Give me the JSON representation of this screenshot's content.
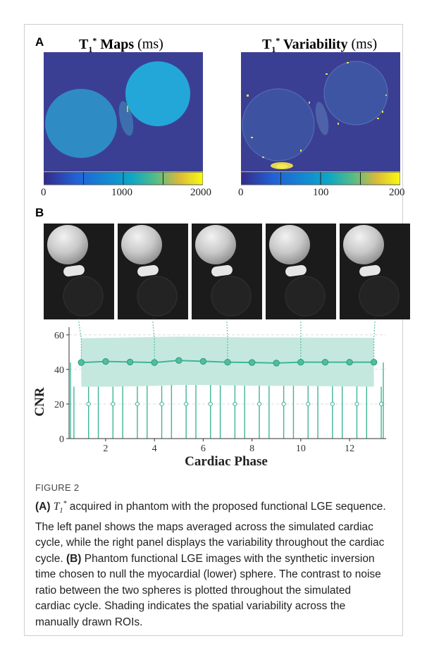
{
  "panel_a": {
    "label": "A",
    "left_map": {
      "title_prefix": "T",
      "subscript": "1",
      "superscript": "*",
      "title_bold": " Maps",
      "title_unit": " (ms)",
      "colorbar_ticks": [
        "0",
        "1000",
        "2000"
      ]
    },
    "right_map": {
      "title_prefix": "T",
      "subscript": "1",
      "superscript": "*",
      "title_bold": " Variability",
      "title_unit": " (ms)",
      "colorbar_ticks": [
        "0",
        "100",
        "200"
      ]
    }
  },
  "panel_b": {
    "label": "B",
    "image_count": 5
  },
  "colors": {
    "teal": "#3fb597",
    "teal_band": "#bfe5da",
    "teal_dark": "#2e9a7d",
    "map_bg": "#3b3f94",
    "grey_grid": "#dddddd"
  },
  "chart_data": {
    "type": "line",
    "xlabel": "Cardiac Phase",
    "ylabel": "CNR",
    "xlim": [
      0.5,
      13.5
    ],
    "ylim": [
      0,
      62
    ],
    "xticks": [
      2,
      4,
      6,
      8,
      10,
      12
    ],
    "yticks": [
      0,
      20,
      40,
      60
    ],
    "grid": "horizontal dashed",
    "series": [
      {
        "x": [
          1,
          2,
          3,
          4,
          5,
          6,
          7,
          8,
          9,
          10,
          11,
          12,
          13
        ],
        "values": [
          44.0,
          44.6,
          44.3,
          44.0,
          45.2,
          44.7,
          44.2,
          44.0,
          43.7,
          44.2,
          44.2,
          44.2,
          44.2
        ],
        "band_upper": [
          58,
          58.3,
          58.5,
          58.8,
          59,
          58.9,
          58.7,
          58.5,
          58.5,
          58.5,
          58.4,
          58.4,
          58.3
        ],
        "band_lower": [
          30,
          30,
          30.2,
          30.5,
          31,
          31,
          30.8,
          30.6,
          30.5,
          30.5,
          30.3,
          30.2,
          30
        ]
      }
    ],
    "linked_phases": [
      1,
      4,
      7,
      10,
      13
    ]
  },
  "caption": {
    "label": "FIGURE 2",
    "a_tag": "(A)",
    "t_symbol": "T",
    "t_sub": "1",
    "t_sup": "*",
    "a_text": " acquired in phantom with the proposed functional LGE sequence. The left panel shows the maps averaged across the simulated cardiac cycle, while the right panel displays the variability throughout the cardiac cycle. ",
    "b_tag": "(B)",
    "b_text": " Phantom functional LGE images with the synthetic inversion time chosen to null the myocardial (lower) sphere. The contrast to noise ratio between the two spheres is plotted throughout the simulated cardiac cycle. Shading indicates the spatial variability across the manually drawn ROIs."
  }
}
